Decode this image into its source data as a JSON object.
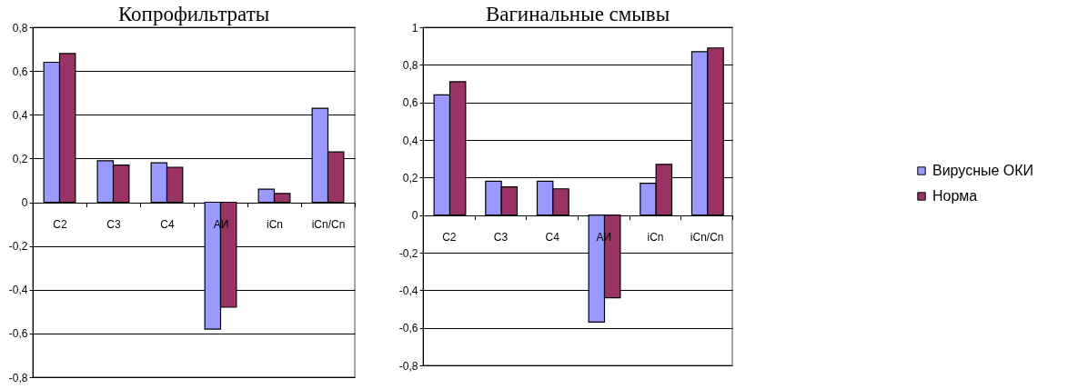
{
  "chart_data": [
    {
      "type": "bar",
      "title": "Копрофильтраты",
      "categories": [
        "C2",
        "C3",
        "C4",
        "АИ",
        "iCn",
        "iCn/Cn"
      ],
      "series": [
        {
          "name": "Вирусные  ОКИ",
          "color": "#9999ff",
          "values": [
            0.64,
            0.19,
            0.18,
            -0.58,
            0.06,
            0.43
          ]
        },
        {
          "name": "Норма",
          "color": "#993366",
          "values": [
            0.68,
            0.17,
            0.16,
            -0.48,
            0.04,
            0.23
          ]
        }
      ],
      "ylim": [
        -0.8,
        0.8
      ],
      "yticks": [
        {
          "value": -0.8,
          "label": "-0,8"
        },
        {
          "value": -0.6,
          "label": "-0,6"
        },
        {
          "value": -0.4,
          "label": "-0,4"
        },
        {
          "value": -0.2,
          "label": "-0,2"
        },
        {
          "value": 0,
          "label": "0"
        },
        {
          "value": 0.2,
          "label": "0,2"
        },
        {
          "value": 0.4,
          "label": "0,4"
        },
        {
          "value": 0.6,
          "label": "0,6"
        },
        {
          "value": 0.8,
          "label": "0,8"
        }
      ],
      "grid": "y",
      "legend": "right"
    },
    {
      "type": "bar",
      "title": "Вагинальные смывы",
      "categories": [
        "C2",
        "C3",
        "C4",
        "АИ",
        "iCn",
        "iCn/Cn"
      ],
      "series": [
        {
          "name": "Вирусные  ОКИ",
          "color": "#9999ff",
          "values": [
            0.64,
            0.18,
            0.18,
            -0.57,
            0.17,
            0.87
          ]
        },
        {
          "name": "Норма",
          "color": "#993366",
          "values": [
            0.71,
            0.15,
            0.14,
            -0.44,
            0.27,
            0.89
          ]
        }
      ],
      "ylim": [
        -0.8,
        1
      ],
      "yticks": [
        {
          "value": -0.8,
          "label": "-0,8"
        },
        {
          "value": -0.6,
          "label": "-0,6"
        },
        {
          "value": -0.4,
          "label": "-0,4"
        },
        {
          "value": -0.2,
          "label": "-0,2"
        },
        {
          "value": 0,
          "label": "0"
        },
        {
          "value": 0.2,
          "label": "0,2"
        },
        {
          "value": 0.4,
          "label": "0,4"
        },
        {
          "value": 0.6,
          "label": "0,6"
        },
        {
          "value": 0.8,
          "label": "0,8"
        },
        {
          "value": 1,
          "label": "1"
        }
      ],
      "grid": "y",
      "legend": "right"
    }
  ]
}
